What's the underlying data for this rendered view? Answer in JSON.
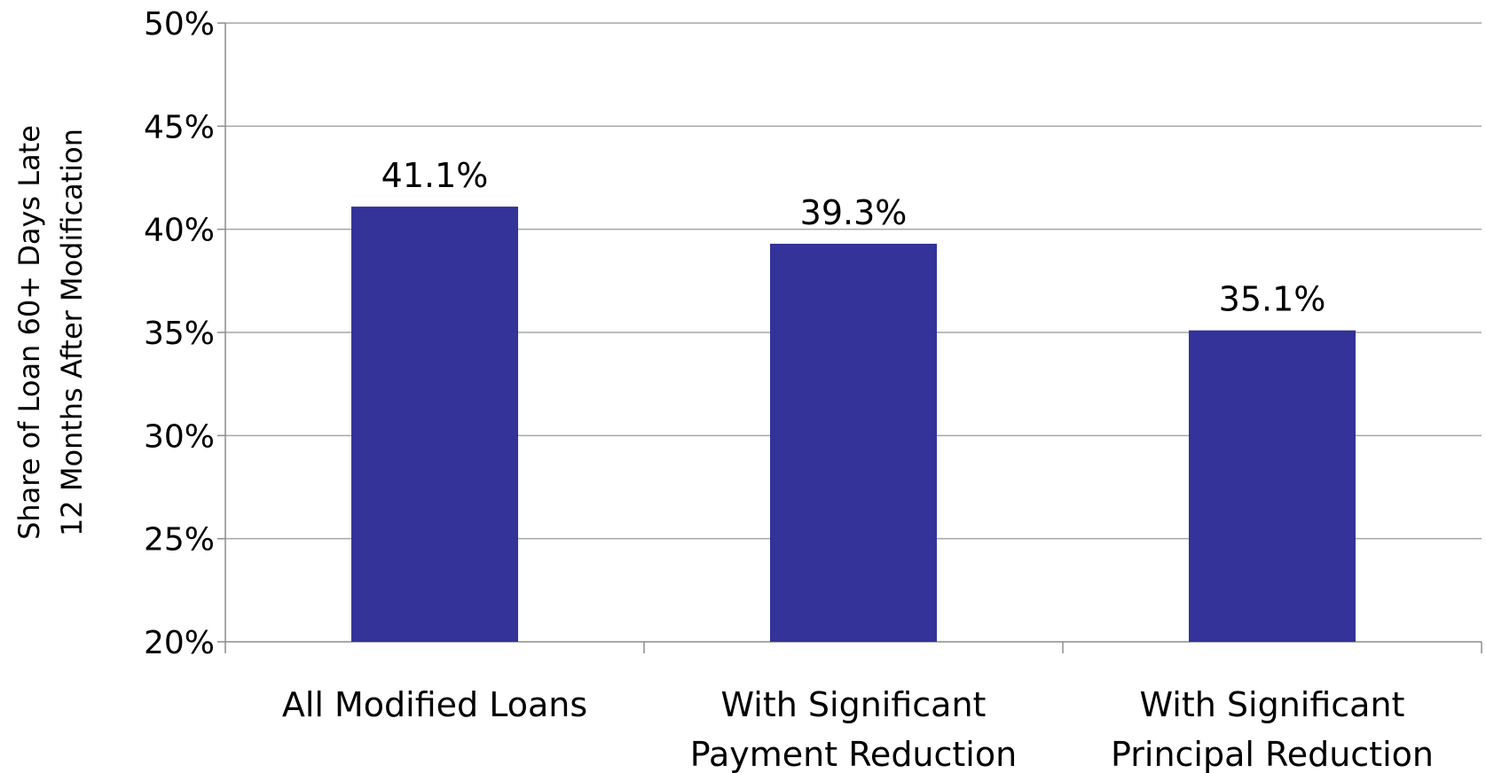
{
  "chart_data": {
    "type": "bar",
    "title": "",
    "xlabel": "",
    "ylabel_lines": [
      "Share of Loan 60+ Days Late",
      "12 Months After Modification"
    ],
    "categories": [
      [
        "All Modified Loans"
      ],
      [
        "With Significant",
        "Payment Reduction"
      ],
      [
        "With Significant",
        "Principal Reduction"
      ]
    ],
    "values": [
      41.1,
      39.3,
      35.1
    ],
    "data_labels": [
      "41.1%",
      "39.3%",
      "35.1%"
    ],
    "ylim": [
      20,
      50
    ],
    "yticks": [
      20,
      25,
      30,
      35,
      40,
      45,
      50
    ],
    "ytick_labels": [
      "20%",
      "25%",
      "30%",
      "35%",
      "40%",
      "45%",
      "50%"
    ],
    "grid": true,
    "legend": "none",
    "colors": {
      "bar": "#333399",
      "grid": "#a6a6a6",
      "axis": "#8c8c8c"
    }
  }
}
